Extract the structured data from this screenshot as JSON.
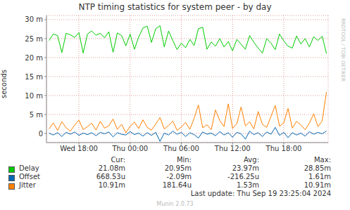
{
  "chart_data": {
    "type": "line",
    "title": "NTP timing statistics for system peer - by day",
    "y_label": "seconds",
    "side_text": "RRDTOOL / TOBI OETIKER",
    "footer": "Last update: Thu Sep 19 23:25:04 2024",
    "credit": "Munin 2.0.73",
    "grid": true,
    "xlim": [
      14.2,
      47.2
    ],
    "xticks": [
      {
        "value": 18,
        "label": "Wed 18:00"
      },
      {
        "value": 24,
        "label": "Thu 00:00"
      },
      {
        "value": 30,
        "label": "Thu 06:00"
      },
      {
        "value": 36,
        "label": "Thu 12:00"
      },
      {
        "value": 42,
        "label": "Thu 18:00"
      }
    ],
    "ylim": [
      -0.0024,
      0.0311
    ],
    "yticks": [
      0,
      {
        "value": 0.005,
        "label": "5 m"
      },
      {
        "value": 0.01,
        "label": "10 m"
      },
      {
        "value": 0.015,
        "label": "15 m"
      },
      {
        "value": 0.02,
        "label": "20 m"
      },
      {
        "value": 0.025,
        "label": "25 m"
      },
      {
        "value": 0.03,
        "label": "30 m"
      }
    ],
    "stats_columns": [
      "Cur:",
      "Min:",
      "Avg:",
      "Max:"
    ],
    "x": [
      14.5,
      15,
      15.5,
      16,
      16.5,
      17,
      17.5,
      18,
      18.5,
      19,
      19.5,
      20,
      20.5,
      21,
      21.5,
      22,
      22.5,
      23,
      23.5,
      24,
      24.5,
      25,
      25.5,
      26,
      26.5,
      27,
      27.5,
      28,
      28.5,
      29,
      29.5,
      30,
      30.5,
      31,
      31.5,
      32,
      32.5,
      33,
      33.5,
      34,
      34.5,
      35,
      35.5,
      36,
      36.5,
      37,
      37.5,
      38,
      38.5,
      39,
      39.5,
      40,
      40.5,
      41,
      41.5,
      42,
      42.5,
      43,
      43.5,
      44,
      44.5,
      45,
      45.5,
      46,
      46.5,
      47
    ],
    "series": [
      {
        "name": "Delay",
        "color": "#00cc00",
        "stats": [
          "21.08m",
          "20.95m",
          "23.97m",
          "28.85m"
        ],
        "values": [
          0.0245,
          0.0262,
          0.0258,
          0.0213,
          0.0264,
          0.026,
          0.0253,
          0.0266,
          0.0212,
          0.0262,
          0.027,
          0.0259,
          0.0264,
          0.0252,
          0.0268,
          0.0214,
          0.0265,
          0.0258,
          0.0231,
          0.0262,
          0.0222,
          0.0254,
          0.0278,
          0.0283,
          0.024,
          0.0276,
          0.0284,
          0.0228,
          0.027,
          0.0245,
          0.0221,
          0.0238,
          0.0226,
          0.0248,
          0.0232,
          0.0276,
          0.028,
          0.0222,
          0.0241,
          0.023,
          0.025,
          0.0228,
          0.0242,
          0.0218,
          0.0248,
          0.0235,
          0.0222,
          0.0258,
          0.024,
          0.0225,
          0.0212,
          0.025,
          0.0238,
          0.0221,
          0.0262,
          0.0244,
          0.023,
          0.0225,
          0.0257,
          0.0236,
          0.025,
          0.0228,
          0.0255,
          0.0245,
          0.0256,
          0.02108
        ]
      },
      {
        "name": "Offset",
        "color": "#0066b3",
        "stats": [
          "668.53u",
          "-2.09m",
          "-216.25u",
          "1.61m"
        ],
        "values": [
          0.0001,
          -0.0004,
          0.0002,
          -0.0008,
          0.0003,
          -0.0002,
          0.0004,
          -0.0005,
          0.0001,
          -0.0003,
          0.0002,
          -0.0006,
          0.0003,
          -0.0001,
          0.0004,
          -0.0009,
          0.0002,
          -0.0002,
          -0.0004,
          0.0005,
          -0.0003,
          0.0001,
          -0.0007,
          0.0002,
          -0.0005,
          0.0003,
          -0.00209,
          0.0001,
          -0.0004,
          0.0006,
          -0.0002,
          0.0003,
          -0.0008,
          0.0002,
          -0.0003,
          -0.0012,
          0.0004,
          -0.0002,
          0.0001,
          -0.0006,
          0.0005,
          -0.0004,
          0.0002,
          -0.001,
          0.0003,
          -0.0001,
          -0.0015,
          0.0006,
          -0.0003,
          0.0002,
          -0.0008,
          0.0004,
          -0.0002,
          0.00161,
          -0.0005,
          0.0003,
          -0.0011,
          0.0002,
          -0.0004,
          0.0001,
          -0.0007,
          0.0005,
          -0.0002,
          0.0003,
          -0.0001,
          0.00066853
        ]
      },
      {
        "name": "Jitter",
        "color": "#ff8000",
        "stats": [
          "10.91m",
          "181.64u",
          "1.53m",
          "10.91m"
        ],
        "values": [
          0.0012,
          0.0028,
          0.0008,
          0.0031,
          0.0015,
          0.0006,
          0.0022,
          0.0035,
          0.001,
          0.0018,
          0.0027,
          0.0009,
          0.0032,
          0.0014,
          0.002,
          0.0038,
          0.0011,
          0.0024,
          0.00018,
          0.0019,
          0.003,
          0.0013,
          0.0036,
          0.0016,
          0.0009,
          0.0025,
          0.0042,
          0.0012,
          0.0021,
          0.0033,
          0.0008,
          0.0017,
          0.0029,
          0.0011,
          0.004,
          0.0075,
          0.0015,
          0.0023,
          0.001,
          0.0062,
          0.0034,
          0.0018,
          0.0078,
          0.0013,
          0.0026,
          0.007,
          0.002,
          0.0031,
          0.0012,
          0.0058,
          0.0024,
          0.0016,
          0.0045,
          0.0074,
          0.0019,
          0.0028,
          0.0066,
          0.0014,
          0.0032,
          0.0022,
          0.001,
          0.0027,
          0.0052,
          0.0018,
          0.0033,
          0.01091
        ]
      }
    ]
  }
}
